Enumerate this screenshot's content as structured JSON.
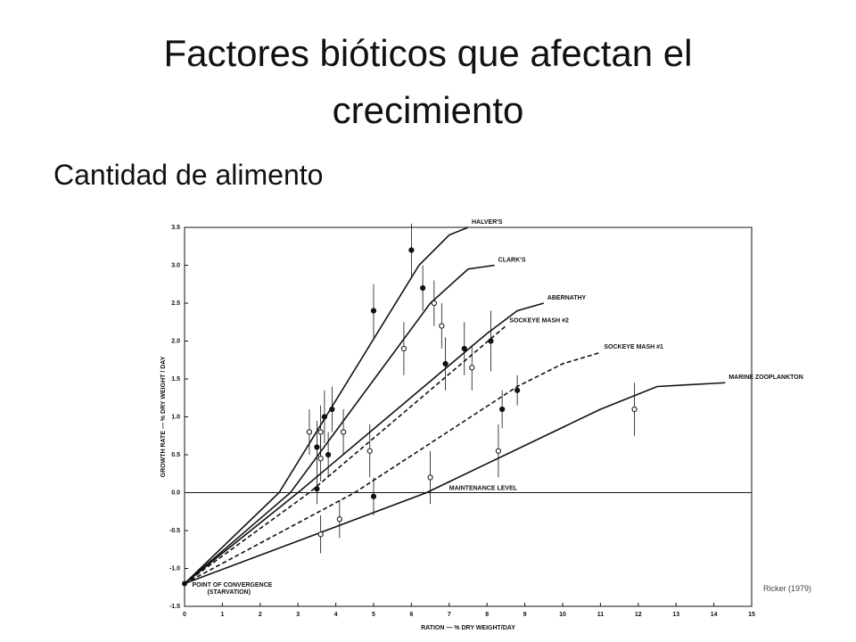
{
  "slide": {
    "title": "Factores bióticos que afectan el crecimiento",
    "subtitle": "Cantidad de alimento",
    "source": "Ricker (1979)"
  },
  "chart_data": {
    "type": "line",
    "xlabel": "RATION — % DRY WEIGHT/DAY",
    "ylabel": "GROWTH RATE — % DRY WEIGHT / DAY",
    "xlim": [
      0,
      15
    ],
    "xticks": [
      0,
      1,
      2,
      3,
      4,
      5,
      6,
      7,
      8,
      9,
      10,
      11,
      12,
      13,
      14,
      15
    ],
    "ylim": [
      -1.5,
      3.5
    ],
    "yticks": [
      3.5,
      {
        "value": 3.0,
        "label": "3.0"
      },
      2.5,
      {
        "value": 2.0,
        "label": "2.0"
      },
      1.5,
      {
        "value": 1.0,
        "label": "1.0"
      },
      0.5,
      {
        "value": 0.0,
        "label": "0.0"
      },
      -0.5,
      {
        "value": -1.0,
        "label": "-1.0"
      },
      -1.5
    ],
    "annotations": [
      "MAINTENANCE LEVEL",
      "POINT OF CONVERGENCE",
      "(STARVATION)"
    ],
    "series": [
      {
        "name": "HALVER'S",
        "color": "#111111",
        "dash": "solid",
        "x": [
          0,
          2.5,
          6.2,
          7.0,
          7.5
        ],
        "values": [
          -1.2,
          0.0,
          3.0,
          3.4,
          3.5
        ],
        "points_x": [
          3.7,
          3.9,
          5.0,
          6.0,
          6.3
        ],
        "points_y": [
          1.0,
          1.1,
          2.4,
          3.2,
          2.7
        ],
        "points_err": [
          0.35,
          0.3,
          0.35,
          0.35,
          0.3
        ]
      },
      {
        "name": "CLARK'S",
        "color": "#111111",
        "dash": "solid",
        "x": [
          0,
          2.8,
          6.5,
          7.5,
          8.2
        ],
        "values": [
          -1.2,
          0.0,
          2.5,
          2.95,
          3.0
        ],
        "points_x": [
          3.3,
          3.6,
          4.2,
          5.8,
          6.6,
          6.8
        ],
        "points_y": [
          0.8,
          0.8,
          0.8,
          1.9,
          2.5,
          2.2
        ],
        "points_err": [
          0.3,
          0.35,
          0.3,
          0.35,
          0.3,
          0.3
        ]
      },
      {
        "name": "ABERNATHY",
        "color": "#111111",
        "dash": "solid",
        "x": [
          0,
          3.0,
          8.0,
          8.8,
          9.5
        ],
        "values": [
          -1.2,
          0.0,
          2.1,
          2.4,
          2.5
        ],
        "points_x": [
          3.5,
          3.8,
          6.9,
          7.4,
          8.1
        ],
        "points_y": [
          0.6,
          0.5,
          1.7,
          1.9,
          2.0
        ],
        "points_err": [
          0.35,
          0.3,
          0.35,
          0.35,
          0.4
        ]
      },
      {
        "name": "SOCKEYE MASH #2",
        "color": "#111111",
        "dash": "dashed",
        "x": [
          0,
          3.3,
          8.5
        ],
        "values": [
          -1.2,
          0.0,
          2.2
        ],
        "points_x": [
          3.6,
          4.9,
          7.6
        ],
        "points_y": [
          0.45,
          0.55,
          1.65
        ],
        "points_err": [
          0.3,
          0.35,
          0.3
        ]
      },
      {
        "name": "SOCKEYE MASH #1",
        "color": "#111111",
        "dash": "dashed",
        "x": [
          0,
          4.5,
          8.8,
          10.0,
          11.0
        ],
        "values": [
          -1.2,
          0.0,
          1.4,
          1.7,
          1.85
        ],
        "points_x": [
          3.5,
          5.0,
          8.4,
          8.8
        ],
        "points_y": [
          0.05,
          -0.05,
          1.1,
          1.35
        ],
        "points_err": [
          0.2,
          0.25,
          0.25,
          0.2
        ]
      },
      {
        "name": "MARINE ZOOPLANKTON",
        "color": "#111111",
        "dash": "solid",
        "x": [
          0,
          6.4,
          11.0,
          12.5,
          14.3
        ],
        "values": [
          -1.2,
          0.0,
          1.1,
          1.4,
          1.45
        ],
        "points_x": [
          3.6,
          4.1,
          6.5,
          8.3,
          11.9
        ],
        "points_y": [
          -0.55,
          -0.35,
          0.2,
          0.55,
          1.1
        ],
        "points_err": [
          0.25,
          0.25,
          0.35,
          0.35,
          0.35
        ]
      }
    ]
  }
}
